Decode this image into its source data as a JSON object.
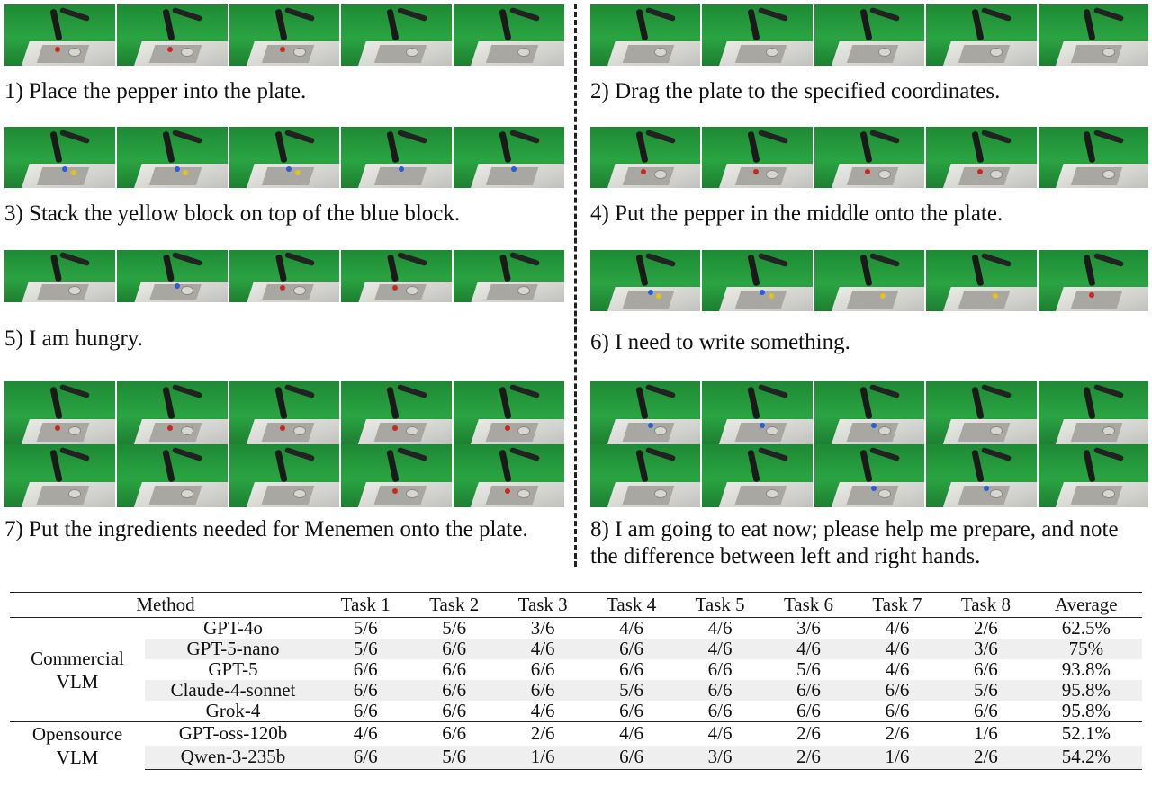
{
  "tasks": [
    {
      "caption": "1) Place the pepper into the plate."
    },
    {
      "caption": "2) Drag the plate to the specified coordinates."
    },
    {
      "caption": "3) Stack the yellow block on top of the blue block."
    },
    {
      "caption": "4) Put the pepper in the middle onto the plate."
    },
    {
      "caption": "5) I am hungry."
    },
    {
      "caption": "6) I need to write something."
    },
    {
      "caption": "7) Put the ingredients needed for Menemen onto the plate."
    },
    {
      "caption": "8) I am going to eat now; please help me prepare, and note the difference between left and right hands."
    }
  ],
  "table": {
    "headers": [
      "Method",
      "Task 1",
      "Task 2",
      "Task 3",
      "Task 4",
      "Task 5",
      "Task 6",
      "Task 7",
      "Task 8",
      "Average"
    ],
    "groups": [
      {
        "name": "Commercial VLM",
        "rows": [
          {
            "model": "GPT-4o",
            "values": [
              "5/6",
              "5/6",
              "3/6",
              "4/6",
              "4/6",
              "3/6",
              "4/6",
              "2/6",
              "62.5%"
            ]
          },
          {
            "model": "GPT-5-nano",
            "values": [
              "5/6",
              "6/6",
              "4/6",
              "6/6",
              "4/6",
              "4/6",
              "4/6",
              "3/6",
              "75%"
            ]
          },
          {
            "model": "GPT-5",
            "values": [
              "6/6",
              "6/6",
              "6/6",
              "6/6",
              "6/6",
              "5/6",
              "4/6",
              "6/6",
              "93.8%"
            ]
          },
          {
            "model": "Claude-4-sonnet",
            "values": [
              "6/6",
              "6/6",
              "6/6",
              "5/6",
              "6/6",
              "6/6",
              "6/6",
              "5/6",
              "95.8%"
            ]
          },
          {
            "model": "Grok-4",
            "values": [
              "6/6",
              "6/6",
              "4/6",
              "6/6",
              "6/6",
              "6/6",
              "6/6",
              "6/6",
              "95.8%"
            ]
          }
        ]
      },
      {
        "name": "Opensource VLM",
        "rows": [
          {
            "model": "GPT-oss-120b",
            "values": [
              "4/6",
              "6/6",
              "2/6",
              "4/6",
              "4/6",
              "2/6",
              "2/6",
              "1/6",
              "52.1%"
            ]
          },
          {
            "model": "Qwen-3-235b",
            "values": [
              "6/6",
              "5/6",
              "1/6",
              "6/6",
              "3/6",
              "2/6",
              "1/6",
              "2/6",
              "54.2%"
            ]
          }
        ]
      }
    ]
  }
}
